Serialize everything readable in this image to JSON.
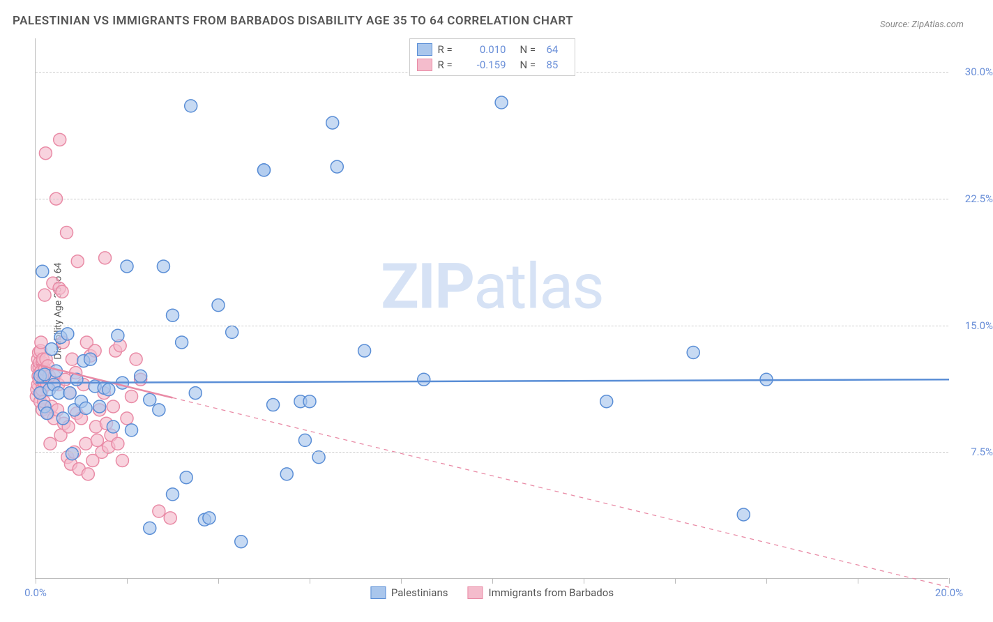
{
  "title": "PALESTINIAN VS IMMIGRANTS FROM BARBADOS DISABILITY AGE 35 TO 64 CORRELATION CHART",
  "source": "Source: ZipAtlas.com",
  "y_axis_label": "Disability Age 35 to 64",
  "watermark_bold": "ZIP",
  "watermark_light": "atlas",
  "chart": {
    "type": "scatter",
    "background_color": "#ffffff",
    "grid_color": "#cccccc",
    "axis_color": "#bbbbbb",
    "xlim": [
      0,
      20
    ],
    "ylim": [
      0,
      32
    ],
    "y_ticks": [
      7.5,
      15.0,
      22.5,
      30.0
    ],
    "y_tick_labels": [
      "7.5%",
      "15.0%",
      "22.5%",
      "30.0%"
    ],
    "x_ticks": [
      0,
      2,
      4,
      6,
      8,
      10,
      12,
      14,
      16,
      18,
      20
    ],
    "x_tick_labels_shown": {
      "0": "0.0%",
      "20": "20.0%"
    },
    "tick_label_color": "#6a8fd8",
    "label_fontsize": 14,
    "tick_fontsize": 15,
    "title_fontsize": 17,
    "title_color": "#555555",
    "marker_radius": 9,
    "marker_stroke_width": 1.5,
    "marker_fill_opacity": 0.35,
    "trend_line_width": 2.5
  },
  "series": [
    {
      "name": "Palestinians",
      "color_stroke": "#5a8ed6",
      "color_fill": "#a9c6ec",
      "R": "0.010",
      "N": "64",
      "trend": {
        "y_start": 11.6,
        "y_end": 11.8,
        "solid_x_end": 20.0
      },
      "points": [
        [
          0.1,
          11.0
        ],
        [
          0.1,
          12.0
        ],
        [
          0.15,
          18.2
        ],
        [
          0.2,
          12.1
        ],
        [
          0.2,
          10.2
        ],
        [
          0.25,
          9.8
        ],
        [
          0.3,
          11.2
        ],
        [
          0.35,
          13.6
        ],
        [
          0.4,
          11.5
        ],
        [
          0.45,
          12.3
        ],
        [
          0.5,
          11.0
        ],
        [
          0.55,
          14.3
        ],
        [
          0.6,
          9.5
        ],
        [
          0.7,
          14.5
        ],
        [
          0.75,
          11.0
        ],
        [
          0.8,
          7.4
        ],
        [
          0.85,
          10.0
        ],
        [
          0.9,
          11.8
        ],
        [
          1.0,
          10.5
        ],
        [
          1.05,
          12.9
        ],
        [
          1.1,
          10.1
        ],
        [
          1.2,
          13.0
        ],
        [
          1.3,
          11.4
        ],
        [
          1.4,
          10.2
        ],
        [
          1.5,
          11.3
        ],
        [
          1.6,
          11.2
        ],
        [
          1.7,
          9.0
        ],
        [
          1.8,
          14.4
        ],
        [
          1.9,
          11.6
        ],
        [
          2.0,
          18.5
        ],
        [
          2.1,
          8.8
        ],
        [
          2.3,
          12.0
        ],
        [
          2.5,
          3.0
        ],
        [
          2.5,
          10.6
        ],
        [
          2.7,
          10.0
        ],
        [
          2.8,
          18.5
        ],
        [
          3.0,
          15.6
        ],
        [
          3.0,
          5.0
        ],
        [
          3.2,
          14.0
        ],
        [
          3.3,
          6.0
        ],
        [
          3.4,
          28.0
        ],
        [
          3.5,
          11.0
        ],
        [
          3.7,
          3.5
        ],
        [
          3.8,
          3.6
        ],
        [
          4.0,
          16.2
        ],
        [
          4.3,
          14.6
        ],
        [
          4.5,
          2.2
        ],
        [
          5.0,
          24.2
        ],
        [
          5.0,
          24.2
        ],
        [
          5.2,
          10.3
        ],
        [
          5.5,
          6.2
        ],
        [
          5.8,
          10.5
        ],
        [
          5.9,
          8.2
        ],
        [
          6.0,
          10.5
        ],
        [
          6.2,
          7.2
        ],
        [
          6.5,
          27.0
        ],
        [
          6.6,
          24.4
        ],
        [
          7.2,
          13.5
        ],
        [
          8.5,
          11.8
        ],
        [
          10.2,
          28.2
        ],
        [
          12.5,
          10.5
        ],
        [
          14.4,
          13.4
        ],
        [
          15.5,
          3.8
        ],
        [
          16.0,
          11.8
        ]
      ]
    },
    {
      "name": "Immigrants from Barbados",
      "color_stroke": "#e98ba6",
      "color_fill": "#f4bccc",
      "R": "-0.159",
      "N": "85",
      "trend": {
        "y_start": 12.7,
        "y_end": -0.5,
        "solid_x_end": 3.0
      },
      "points": [
        [
          0.02,
          10.8
        ],
        [
          0.03,
          11.2
        ],
        [
          0.04,
          12.5
        ],
        [
          0.05,
          13.0
        ],
        [
          0.05,
          11.5
        ],
        [
          0.06,
          12.0
        ],
        [
          0.07,
          13.4
        ],
        [
          0.08,
          11.8
        ],
        [
          0.08,
          12.5
        ],
        [
          0.09,
          12.8
        ],
        [
          0.1,
          12.2
        ],
        [
          0.1,
          10.5
        ],
        [
          0.11,
          13.5
        ],
        [
          0.12,
          11.0
        ],
        [
          0.12,
          14.0
        ],
        [
          0.13,
          12.3
        ],
        [
          0.14,
          11.2
        ],
        [
          0.15,
          12.8
        ],
        [
          0.15,
          10.0
        ],
        [
          0.16,
          13.0
        ],
        [
          0.17,
          11.7
        ],
        [
          0.18,
          12.0
        ],
        [
          0.18,
          10.5
        ],
        [
          0.2,
          12.4
        ],
        [
          0.2,
          16.8
        ],
        [
          0.22,
          25.2
        ],
        [
          0.23,
          13.0
        ],
        [
          0.25,
          11.5
        ],
        [
          0.27,
          12.6
        ],
        [
          0.28,
          9.8
        ],
        [
          0.3,
          12.0
        ],
        [
          0.32,
          8.0
        ],
        [
          0.35,
          10.2
        ],
        [
          0.38,
          17.5
        ],
        [
          0.4,
          9.5
        ],
        [
          0.42,
          12.0
        ],
        [
          0.45,
          22.5
        ],
        [
          0.48,
          10.0
        ],
        [
          0.5,
          11.5
        ],
        [
          0.52,
          17.2
        ],
        [
          0.53,
          26.0
        ],
        [
          0.55,
          8.5
        ],
        [
          0.58,
          17.0
        ],
        [
          0.6,
          14.0
        ],
        [
          0.62,
          9.2
        ],
        [
          0.65,
          11.8
        ],
        [
          0.68,
          20.5
        ],
        [
          0.7,
          7.2
        ],
        [
          0.72,
          9.0
        ],
        [
          0.75,
          11.0
        ],
        [
          0.77,
          6.8
        ],
        [
          0.8,
          13.0
        ],
        [
          0.85,
          7.5
        ],
        [
          0.88,
          12.2
        ],
        [
          0.9,
          9.8
        ],
        [
          0.92,
          18.8
        ],
        [
          0.95,
          6.5
        ],
        [
          1.0,
          9.5
        ],
        [
          1.05,
          11.5
        ],
        [
          1.1,
          8.0
        ],
        [
          1.12,
          14.0
        ],
        [
          1.15,
          6.2
        ],
        [
          1.2,
          13.2
        ],
        [
          1.25,
          7.0
        ],
        [
          1.3,
          13.5
        ],
        [
          1.32,
          9.0
        ],
        [
          1.35,
          8.2
        ],
        [
          1.4,
          10.0
        ],
        [
          1.45,
          7.5
        ],
        [
          1.5,
          11.0
        ],
        [
          1.52,
          19.0
        ],
        [
          1.55,
          9.2
        ],
        [
          1.6,
          7.8
        ],
        [
          1.65,
          8.5
        ],
        [
          1.7,
          10.2
        ],
        [
          1.75,
          13.5
        ],
        [
          1.8,
          8.0
        ],
        [
          1.85,
          13.8
        ],
        [
          1.9,
          7.0
        ],
        [
          2.0,
          9.5
        ],
        [
          2.1,
          10.8
        ],
        [
          2.2,
          13.0
        ],
        [
          2.3,
          11.8
        ],
        [
          2.7,
          4.0
        ],
        [
          2.95,
          3.6
        ]
      ]
    }
  ],
  "top_legend": {
    "r_label": "R  =",
    "n_label": "N  ="
  },
  "bottom_legend": {
    "items": [
      "Palestinians",
      "Immigrants from Barbados"
    ]
  }
}
